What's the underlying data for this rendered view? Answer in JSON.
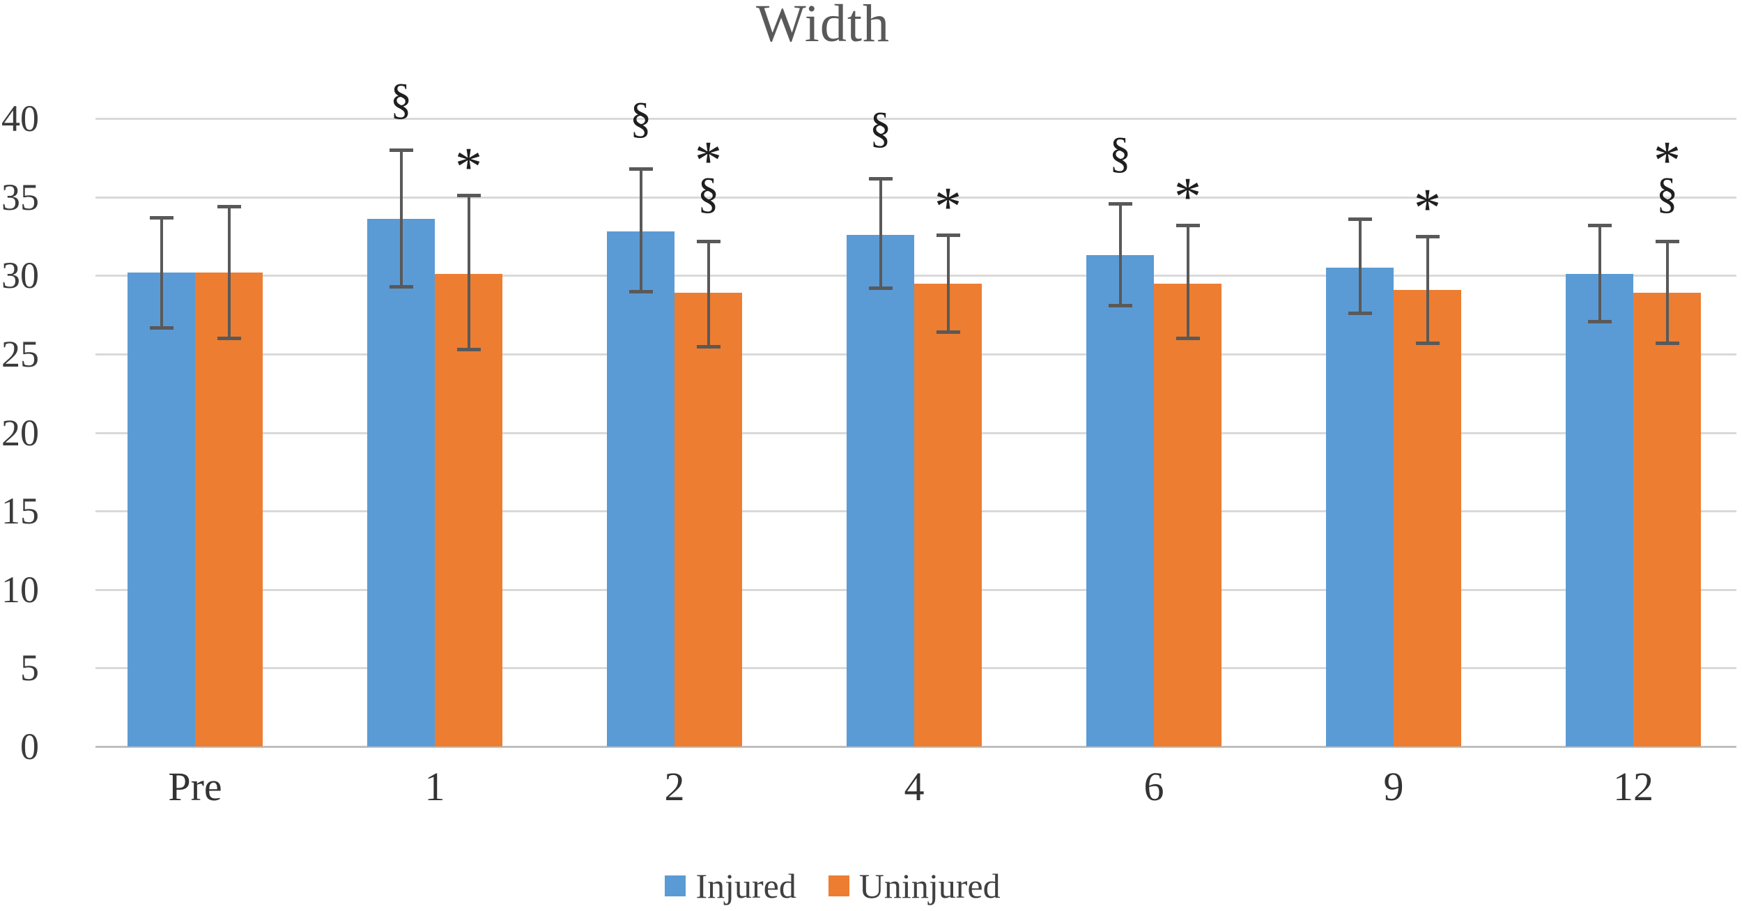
{
  "title": "Width",
  "colors": {
    "injured": "#5b9bd5",
    "uninjured": "#ed7d31",
    "error_bar": "#595959",
    "gridline": "#d9d9d9",
    "axis_line": "#bfbfbf",
    "title_text": "#595959",
    "tick_text": "#3b3b3b"
  },
  "legend": {
    "items": [
      {
        "label": "Injured",
        "color": "#5b9bd5"
      },
      {
        "label": "Uninjured",
        "color": "#ed7d31"
      }
    ]
  },
  "chart_data": {
    "type": "bar",
    "title": "Width",
    "categories": [
      "Pre",
      "1",
      "2",
      "4",
      "6",
      "9",
      "12"
    ],
    "xlabel": "",
    "ylabel": "",
    "y_axis": {
      "min": 0,
      "max": 40,
      "tick_step": 5,
      "ticks": [
        0,
        5,
        10,
        15,
        20,
        25,
        30,
        35,
        40
      ]
    },
    "grid": true,
    "legend_position": "bottom",
    "series": [
      {
        "name": "Injured",
        "color": "#5b9bd5",
        "values": [
          30.2,
          33.6,
          32.8,
          32.6,
          31.3,
          30.5,
          30.1
        ],
        "error_low": [
          26.7,
          29.3,
          29.0,
          29.2,
          28.1,
          27.6,
          27.1
        ],
        "error_high": [
          33.7,
          38.0,
          36.8,
          36.2,
          34.6,
          33.6,
          33.2
        ],
        "annotations": [
          [],
          [
            "§"
          ],
          [
            "§"
          ],
          [
            "§"
          ],
          [
            "§"
          ],
          [],
          []
        ]
      },
      {
        "name": "Uninjured",
        "color": "#ed7d31",
        "values": [
          30.2,
          30.1,
          28.9,
          29.5,
          29.5,
          29.1,
          28.9
        ],
        "error_low": [
          26.0,
          25.3,
          25.5,
          26.4,
          26.0,
          25.7,
          25.7
        ],
        "error_high": [
          34.4,
          35.1,
          32.2,
          32.6,
          33.2,
          32.5,
          32.2
        ],
        "annotations": [
          [],
          [
            "*"
          ],
          [
            "*",
            "§"
          ],
          [
            "*"
          ],
          [
            "*"
          ],
          [
            "*"
          ],
          [
            "*",
            "§"
          ]
        ]
      }
    ]
  }
}
